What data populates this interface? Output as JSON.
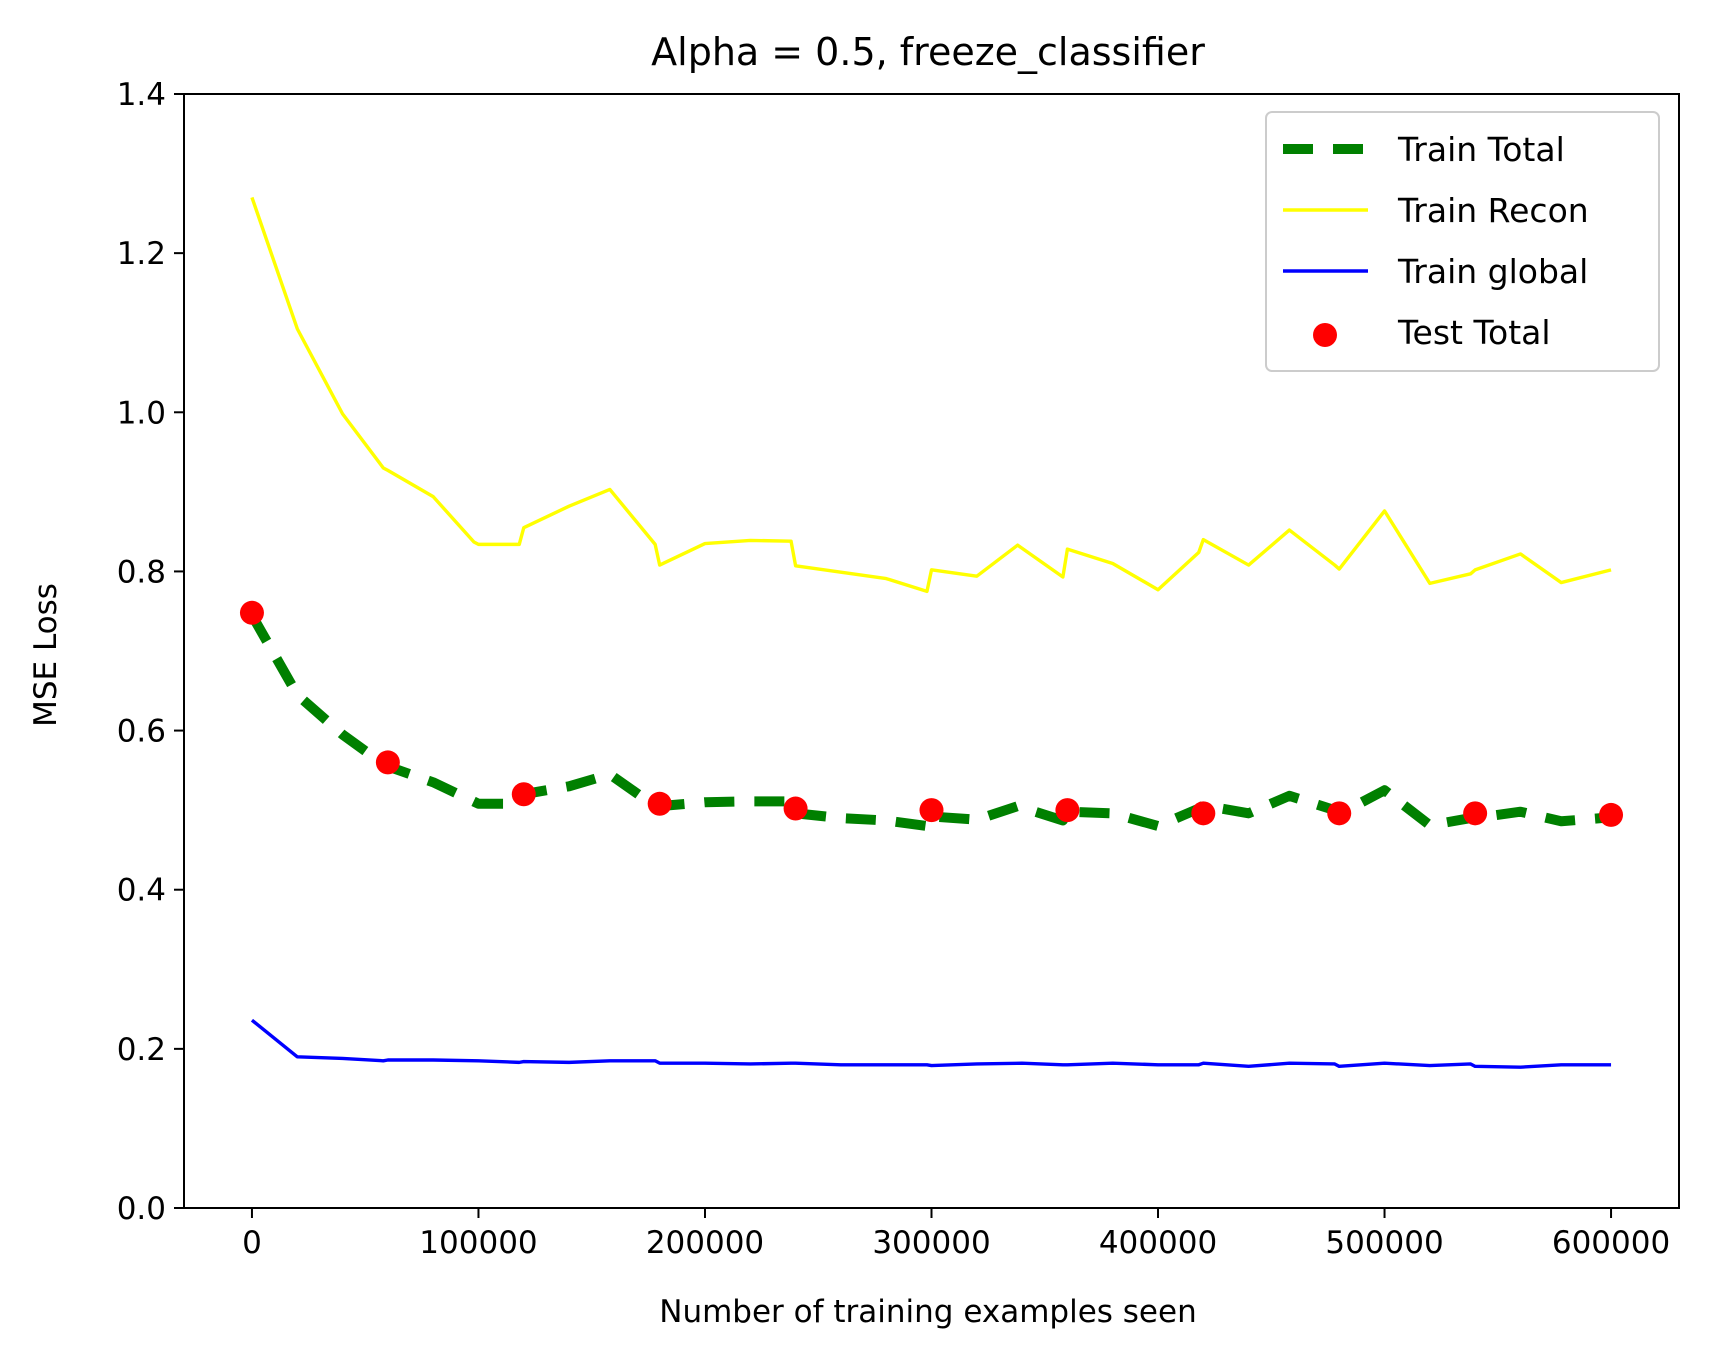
{
  "chart_data": {
    "type": "line",
    "title": "Alpha = 0.5, freeze_classifier",
    "xlabel": "Number of training examples seen",
    "ylabel": "MSE Loss",
    "xlim": [
      -30000,
      630000
    ],
    "ylim": [
      0.0,
      1.4
    ],
    "xticks": [
      0,
      100000,
      200000,
      300000,
      400000,
      500000,
      600000
    ],
    "xtick_labels": [
      "0",
      "100000",
      "200000",
      "300000",
      "400000",
      "500000",
      "600000"
    ],
    "yticks": [
      0.0,
      0.2,
      0.4,
      0.6,
      0.8,
      1.0,
      1.2,
      1.4
    ],
    "ytick_labels": [
      "0.0",
      "0.2",
      "0.4",
      "0.6",
      "0.8",
      "1.0",
      "1.2",
      "1.4"
    ],
    "grid": false,
    "legend_position": "top-right",
    "series": [
      {
        "name": "Train Total",
        "kind": "line",
        "style": "dashed",
        "color": "#008000",
        "x": [
          0,
          20000,
          40000,
          58000,
          60000,
          80000,
          100000,
          118000,
          120000,
          140000,
          158000,
          178000,
          180000,
          200000,
          220000,
          238000,
          240000,
          260000,
          280000,
          298000,
          300000,
          320000,
          338000,
          358000,
          360000,
          380000,
          400000,
          418000,
          420000,
          440000,
          458000,
          478000,
          480000,
          500000,
          520000,
          538000,
          540000,
          560000,
          578000,
          600000
        ],
        "y": [
          0.745,
          0.645,
          0.595,
          0.558,
          0.555,
          0.535,
          0.508,
          0.508,
          0.52,
          0.53,
          0.545,
          0.505,
          0.505,
          0.51,
          0.511,
          0.511,
          0.496,
          0.49,
          0.487,
          0.48,
          0.492,
          0.488,
          0.505,
          0.487,
          0.498,
          0.496,
          0.48,
          0.502,
          0.506,
          0.496,
          0.518,
          0.5,
          0.495,
          0.525,
          0.481,
          0.49,
          0.49,
          0.498,
          0.486,
          0.491
        ]
      },
      {
        "name": "Train Recon",
        "kind": "line",
        "style": "solid",
        "color": "#ffff00",
        "x": [
          0,
          20000,
          40000,
          58000,
          60000,
          80000,
          98000,
          100000,
          118000,
          120000,
          140000,
          158000,
          178000,
          180000,
          200000,
          220000,
          238000,
          240000,
          260000,
          280000,
          298000,
          300000,
          320000,
          338000,
          358000,
          360000,
          380000,
          400000,
          418000,
          420000,
          440000,
          458000,
          478000,
          480000,
          500000,
          520000,
          538000,
          540000,
          560000,
          578000,
          600000
        ],
        "y": [
          1.27,
          1.105,
          0.998,
          0.93,
          0.927,
          0.894,
          0.837,
          0.834,
          0.834,
          0.855,
          0.882,
          0.903,
          0.834,
          0.808,
          0.835,
          0.839,
          0.838,
          0.807,
          0.799,
          0.791,
          0.775,
          0.802,
          0.794,
          0.833,
          0.793,
          0.828,
          0.81,
          0.777,
          0.824,
          0.84,
          0.808,
          0.852,
          0.808,
          0.803,
          0.876,
          0.785,
          0.797,
          0.802,
          0.822,
          0.786,
          0.802
        ]
      },
      {
        "name": "Train global",
        "kind": "line",
        "style": "solid",
        "color": "#0000ff",
        "x": [
          0,
          20000,
          40000,
          58000,
          60000,
          80000,
          100000,
          118000,
          120000,
          140000,
          158000,
          178000,
          180000,
          200000,
          220000,
          238000,
          240000,
          260000,
          280000,
          298000,
          300000,
          320000,
          340000,
          358000,
          360000,
          380000,
          400000,
          418000,
          420000,
          440000,
          458000,
          478000,
          480000,
          500000,
          520000,
          538000,
          540000,
          560000,
          578000,
          600000
        ],
        "y": [
          0.236,
          0.19,
          0.188,
          0.185,
          0.186,
          0.186,
          0.185,
          0.183,
          0.184,
          0.183,
          0.185,
          0.185,
          0.182,
          0.182,
          0.181,
          0.182,
          0.182,
          0.18,
          0.18,
          0.18,
          0.179,
          0.181,
          0.182,
          0.18,
          0.18,
          0.182,
          0.18,
          0.18,
          0.182,
          0.178,
          0.182,
          0.181,
          0.178,
          0.182,
          0.179,
          0.181,
          0.178,
          0.177,
          0.18,
          0.18
        ]
      },
      {
        "name": "Test Total",
        "kind": "scatter",
        "color": "#ff0000",
        "x": [
          0,
          60000,
          120000,
          180000,
          240000,
          300000,
          360000,
          420000,
          480000,
          540000,
          600000
        ],
        "y": [
          0.748,
          0.56,
          0.52,
          0.508,
          0.502,
          0.5,
          0.5,
          0.496,
          0.496,
          0.496,
          0.494
        ]
      }
    ]
  }
}
